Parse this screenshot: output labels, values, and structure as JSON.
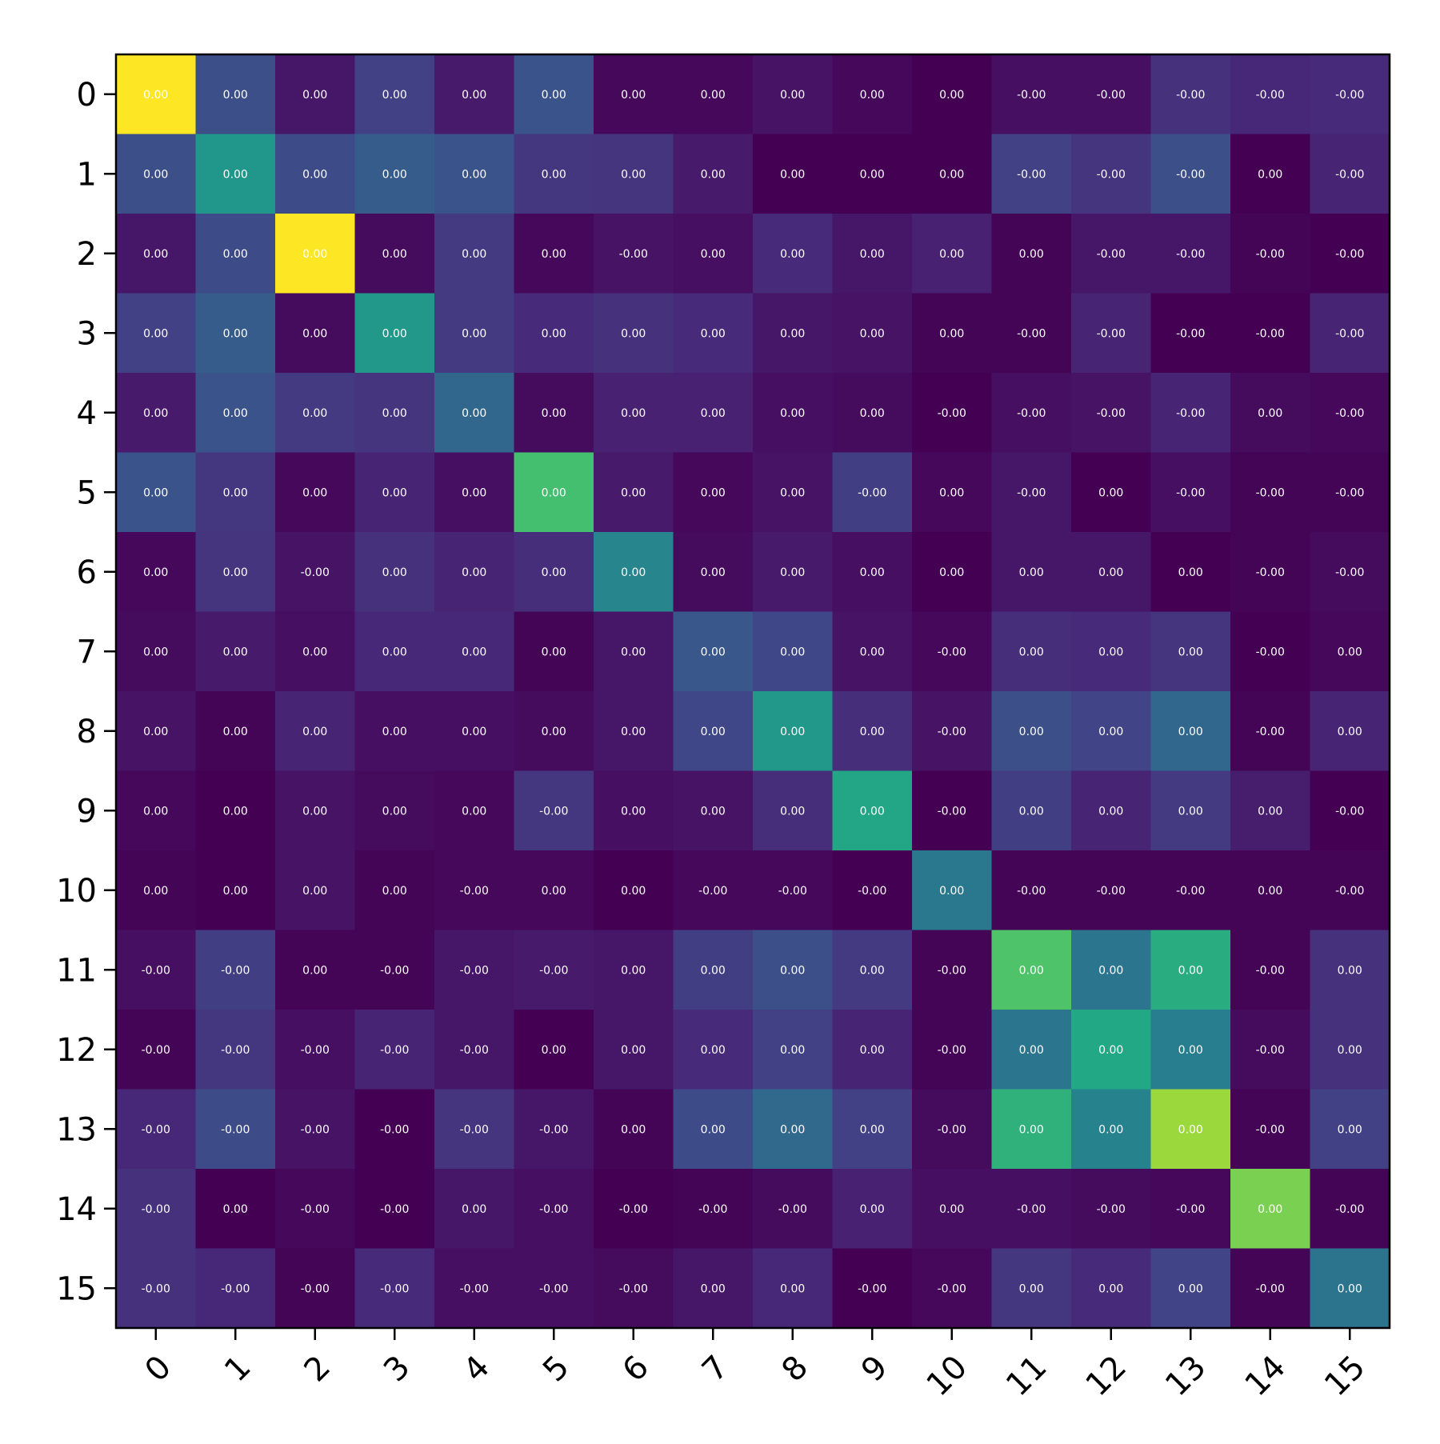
{
  "chart_data": {
    "type": "heatmap",
    "title": "",
    "xlabel": "",
    "ylabel": "",
    "colormap": "viridis",
    "x_labels": [
      "0",
      "1",
      "2",
      "3",
      "4",
      "5",
      "6",
      "7",
      "8",
      "9",
      "10",
      "11",
      "12",
      "13",
      "14",
      "15"
    ],
    "y_labels": [
      "0",
      "1",
      "2",
      "3",
      "4",
      "5",
      "6",
      "7",
      "8",
      "9",
      "10",
      "11",
      "12",
      "13",
      "14",
      "15"
    ],
    "intensity": [
      [
        1.0,
        0.24,
        0.06,
        0.19,
        0.07,
        0.26,
        0.02,
        0.02,
        0.05,
        0.02,
        0.0,
        0.04,
        0.04,
        0.14,
        0.11,
        0.12
      ],
      [
        0.24,
        0.52,
        0.23,
        0.29,
        0.26,
        0.16,
        0.15,
        0.07,
        0.0,
        0.0,
        0.0,
        0.19,
        0.15,
        0.24,
        0.0,
        0.1
      ],
      [
        0.06,
        0.23,
        1.0,
        0.03,
        0.17,
        0.02,
        0.05,
        0.04,
        0.12,
        0.06,
        0.09,
        0.01,
        0.06,
        0.06,
        0.01,
        0.0
      ],
      [
        0.19,
        0.29,
        0.03,
        0.53,
        0.17,
        0.12,
        0.14,
        0.12,
        0.06,
        0.05,
        0.01,
        0.01,
        0.1,
        0.0,
        0.0,
        0.1
      ],
      [
        0.07,
        0.26,
        0.17,
        0.15,
        0.33,
        0.03,
        0.09,
        0.09,
        0.04,
        0.03,
        0.0,
        0.04,
        0.05,
        0.1,
        0.03,
        0.02
      ],
      [
        0.26,
        0.16,
        0.02,
        0.1,
        0.04,
        0.7,
        0.07,
        0.02,
        0.05,
        0.18,
        0.02,
        0.06,
        0.0,
        0.04,
        0.01,
        0.01
      ],
      [
        0.02,
        0.15,
        0.05,
        0.14,
        0.1,
        0.13,
        0.45,
        0.03,
        0.07,
        0.04,
        0.0,
        0.06,
        0.06,
        0.0,
        0.01,
        0.03
      ],
      [
        0.03,
        0.07,
        0.04,
        0.11,
        0.11,
        0.01,
        0.06,
        0.27,
        0.21,
        0.05,
        0.02,
        0.13,
        0.12,
        0.15,
        0.0,
        0.02
      ],
      [
        0.05,
        0.01,
        0.1,
        0.04,
        0.04,
        0.03,
        0.06,
        0.21,
        0.53,
        0.13,
        0.05,
        0.24,
        0.2,
        0.33,
        0.01,
        0.1
      ],
      [
        0.02,
        0.0,
        0.05,
        0.03,
        0.02,
        0.16,
        0.04,
        0.05,
        0.13,
        0.59,
        0.0,
        0.18,
        0.1,
        0.17,
        0.08,
        0.0
      ],
      [
        0.01,
        0.0,
        0.05,
        0.01,
        0.02,
        0.02,
        0.0,
        0.02,
        0.02,
        0.0,
        0.4,
        0.01,
        0.01,
        0.01,
        0.01,
        0.01
      ],
      [
        0.04,
        0.18,
        0.01,
        0.01,
        0.06,
        0.07,
        0.06,
        0.18,
        0.24,
        0.17,
        0.01,
        0.72,
        0.39,
        0.62,
        0.01,
        0.14
      ],
      [
        0.01,
        0.16,
        0.04,
        0.1,
        0.06,
        0.0,
        0.06,
        0.12,
        0.19,
        0.1,
        0.01,
        0.39,
        0.6,
        0.42,
        0.03,
        0.14
      ],
      [
        0.11,
        0.23,
        0.05,
        0.0,
        0.15,
        0.06,
        0.01,
        0.23,
        0.34,
        0.19,
        0.03,
        0.64,
        0.44,
        0.85,
        0.01,
        0.19
      ],
      [
        0.14,
        0.0,
        0.02,
        0.0,
        0.06,
        0.04,
        0.0,
        0.01,
        0.03,
        0.09,
        0.04,
        0.04,
        0.03,
        0.02,
        0.8,
        0.01
      ],
      [
        0.14,
        0.11,
        0.01,
        0.12,
        0.04,
        0.04,
        0.03,
        0.06,
        0.11,
        0.0,
        0.02,
        0.16,
        0.12,
        0.2,
        0.01,
        0.38
      ]
    ],
    "labels": [
      [
        "0.00",
        "0.00",
        "0.00",
        "0.00",
        "0.00",
        "0.00",
        "0.00",
        "0.00",
        "0.00",
        "0.00",
        "0.00",
        "-0.00",
        "-0.00",
        "-0.00",
        "-0.00",
        "-0.00"
      ],
      [
        "0.00",
        "0.00",
        "0.00",
        "0.00",
        "0.00",
        "0.00",
        "0.00",
        "0.00",
        "0.00",
        "0.00",
        "0.00",
        "-0.00",
        "-0.00",
        "-0.00",
        "0.00",
        "-0.00"
      ],
      [
        "0.00",
        "0.00",
        "0.00",
        "0.00",
        "0.00",
        "0.00",
        "-0.00",
        "0.00",
        "0.00",
        "0.00",
        "0.00",
        "0.00",
        "-0.00",
        "-0.00",
        "-0.00",
        "-0.00"
      ],
      [
        "0.00",
        "0.00",
        "0.00",
        "0.00",
        "0.00",
        "0.00",
        "0.00",
        "0.00",
        "0.00",
        "0.00",
        "0.00",
        "-0.00",
        "-0.00",
        "-0.00",
        "-0.00",
        "-0.00"
      ],
      [
        "0.00",
        "0.00",
        "0.00",
        "0.00",
        "0.00",
        "0.00",
        "0.00",
        "0.00",
        "0.00",
        "0.00",
        "-0.00",
        "-0.00",
        "-0.00",
        "-0.00",
        "0.00",
        "-0.00"
      ],
      [
        "0.00",
        "0.00",
        "0.00",
        "0.00",
        "0.00",
        "0.00",
        "0.00",
        "0.00",
        "0.00",
        "-0.00",
        "0.00",
        "-0.00",
        "0.00",
        "-0.00",
        "-0.00",
        "-0.00"
      ],
      [
        "0.00",
        "0.00",
        "-0.00",
        "0.00",
        "0.00",
        "0.00",
        "0.00",
        "0.00",
        "0.00",
        "0.00",
        "0.00",
        "0.00",
        "0.00",
        "0.00",
        "-0.00",
        "-0.00"
      ],
      [
        "0.00",
        "0.00",
        "0.00",
        "0.00",
        "0.00",
        "0.00",
        "0.00",
        "0.00",
        "0.00",
        "0.00",
        "-0.00",
        "0.00",
        "0.00",
        "0.00",
        "-0.00",
        "0.00"
      ],
      [
        "0.00",
        "0.00",
        "0.00",
        "0.00",
        "0.00",
        "0.00",
        "0.00",
        "0.00",
        "0.00",
        "0.00",
        "-0.00",
        "0.00",
        "0.00",
        "0.00",
        "-0.00",
        "0.00"
      ],
      [
        "0.00",
        "0.00",
        "0.00",
        "0.00",
        "0.00",
        "-0.00",
        "0.00",
        "0.00",
        "0.00",
        "0.00",
        "-0.00",
        "0.00",
        "0.00",
        "0.00",
        "0.00",
        "-0.00"
      ],
      [
        "0.00",
        "0.00",
        "0.00",
        "0.00",
        "-0.00",
        "0.00",
        "0.00",
        "-0.00",
        "-0.00",
        "-0.00",
        "0.00",
        "-0.00",
        "-0.00",
        "-0.00",
        "0.00",
        "-0.00"
      ],
      [
        "-0.00",
        "-0.00",
        "0.00",
        "-0.00",
        "-0.00",
        "-0.00",
        "0.00",
        "0.00",
        "0.00",
        "0.00",
        "-0.00",
        "0.00",
        "0.00",
        "0.00",
        "-0.00",
        "0.00"
      ],
      [
        "-0.00",
        "-0.00",
        "-0.00",
        "-0.00",
        "-0.00",
        "0.00",
        "0.00",
        "0.00",
        "0.00",
        "0.00",
        "-0.00",
        "0.00",
        "0.00",
        "0.00",
        "-0.00",
        "0.00"
      ],
      [
        "-0.00",
        "-0.00",
        "-0.00",
        "-0.00",
        "-0.00",
        "-0.00",
        "0.00",
        "0.00",
        "0.00",
        "0.00",
        "-0.00",
        "0.00",
        "0.00",
        "0.00",
        "-0.00",
        "0.00"
      ],
      [
        "-0.00",
        "0.00",
        "-0.00",
        "-0.00",
        "0.00",
        "-0.00",
        "-0.00",
        "-0.00",
        "-0.00",
        "0.00",
        "0.00",
        "-0.00",
        "-0.00",
        "-0.00",
        "0.00",
        "-0.00"
      ],
      [
        "-0.00",
        "-0.00",
        "-0.00",
        "-0.00",
        "-0.00",
        "-0.00",
        "-0.00",
        "0.00",
        "0.00",
        "-0.00",
        "-0.00",
        "0.00",
        "0.00",
        "0.00",
        "-0.00",
        "0.00"
      ]
    ],
    "grid": false,
    "colorbar": false
  }
}
